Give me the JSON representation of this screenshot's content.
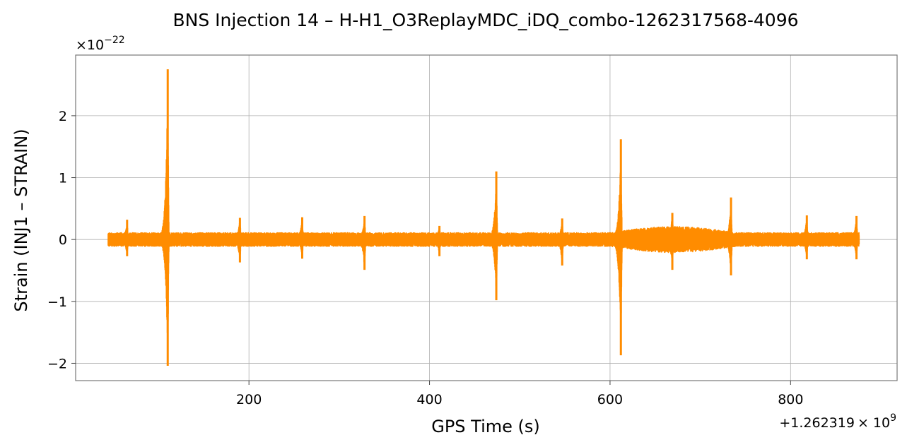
{
  "chart_data": {
    "type": "line",
    "title": "BNS Injection 14 – H-H1_O3ReplayMDC_iDQ_combo-1262317568-4096",
    "xlabel": "GPS Time (s)",
    "ylabel": "Strain (INJ1 – STRAIN)",
    "x_offset_label": "+1.262319",
    "x_offset_times": "× 10",
    "x_offset_exp": "9",
    "y_scale_mult": "×10",
    "y_scale_exp": "−22",
    "xlim": [
      8,
      918
    ],
    "ylim": [
      -2.28,
      2.98
    ],
    "x_ticks": [
      200,
      400,
      600,
      800
    ],
    "x_tick_labels": [
      "200",
      "400",
      "600",
      "800"
    ],
    "y_ticks": [
      -2,
      -1,
      0,
      1,
      2
    ],
    "y_tick_labels": [
      "−2",
      "−1",
      "0",
      "1",
      "2"
    ],
    "grid": true,
    "line_color": "#ff8c00",
    "series": [
      {
        "x_range": [
          44,
          876
        ],
        "baseline_amplitude": 0.11,
        "peaks": [
          {
            "x": 65,
            "max": 0.32,
            "min": -0.27
          },
          {
            "x": 110,
            "max": 2.75,
            "min": -2.04
          },
          {
            "x": 190,
            "max": 0.35,
            "min": -0.37
          },
          {
            "x": 259,
            "max": 0.36,
            "min": -0.31
          },
          {
            "x": 328,
            "max": 0.38,
            "min": -0.49
          },
          {
            "x": 411,
            "max": 0.22,
            "min": -0.27
          },
          {
            "x": 474,
            "max": 1.1,
            "min": -0.98
          },
          {
            "x": 547,
            "max": 0.34,
            "min": -0.42
          },
          {
            "x": 612,
            "max": 1.62,
            "min": -1.87
          },
          {
            "x": 669,
            "max": 0.43,
            "min": -0.49
          },
          {
            "x": 734,
            "max": 0.68,
            "min": -0.58
          },
          {
            "x": 818,
            "max": 0.39,
            "min": -0.32
          },
          {
            "x": 873,
            "max": 0.38,
            "min": -0.32
          }
        ]
      }
    ]
  }
}
